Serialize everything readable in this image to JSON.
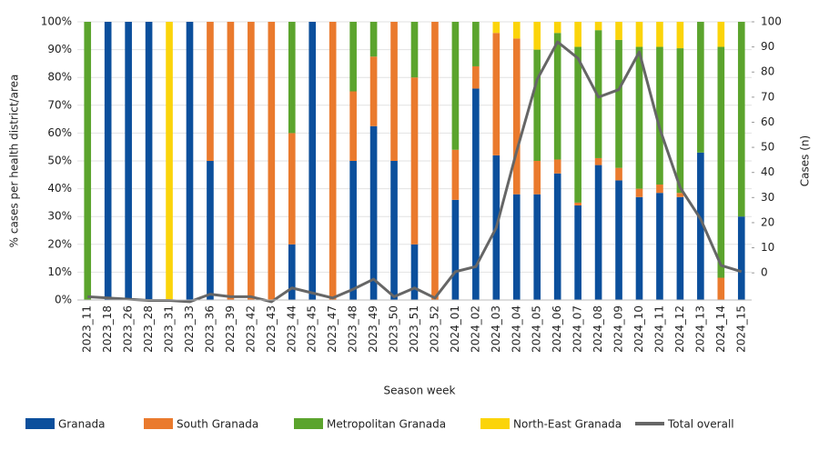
{
  "chart_data": {
    "type": "stacked-bar-line",
    "x_label": "Season week",
    "y_label": "% cases per health district/area",
    "y2_label": "Cases (n)",
    "categories": [
      "2023_11",
      "2023_18",
      "2023_26",
      "2023_28",
      "2023_31",
      "2023_33",
      "2023_36",
      "2023_39",
      "2023_42",
      "2023_43",
      "2023_44",
      "2023_45",
      "2023_47",
      "2023_48",
      "2023_49",
      "2023_50",
      "2023_51",
      "2023_52",
      "2024_01",
      "2024_02",
      "2024_03",
      "2024_04",
      "2024_05",
      "2024_06",
      "2024_07",
      "2024_08",
      "2024_09",
      "2024_10",
      "2024_11",
      "2024_12",
      "2024_13",
      "2024_14",
      "2024_15"
    ],
    "series": [
      {
        "name": "Granada",
        "color": "#0b4f9c",
        "values": [
          0,
          100,
          100,
          100,
          0,
          100,
          50,
          0,
          0,
          0,
          20,
          100,
          0,
          50,
          62.5,
          50,
          20,
          0,
          36,
          76,
          52,
          38,
          38,
          45.5,
          34,
          48.5,
          43,
          37,
          38.5,
          37,
          53,
          0,
          30
        ]
      },
      {
        "name": "South Granada",
        "color": "#ea7a2d",
        "values": [
          0,
          0,
          0,
          0,
          0,
          0,
          50,
          100,
          100,
          100,
          40,
          0,
          100,
          25,
          25,
          50,
          60,
          100,
          18,
          8,
          44,
          56,
          12,
          5,
          1,
          2.5,
          4.5,
          3,
          3,
          1.5,
          0,
          8,
          0
        ]
      },
      {
        "name": "Metropolitan Granada",
        "color": "#5ba42d",
        "values": [
          100,
          0,
          0,
          0,
          0,
          0,
          0,
          0,
          0,
          0,
          40,
          0,
          0,
          25,
          12.5,
          0,
          20,
          0,
          46,
          16,
          0,
          0,
          40,
          45.5,
          56,
          46,
          46,
          51,
          49.5,
          52,
          47,
          83,
          70
        ]
      },
      {
        "name": "North-East Granada",
        "color": "#fbd40a",
        "values": [
          0,
          0,
          0,
          0,
          100,
          0,
          0,
          0,
          0,
          0,
          0,
          0,
          0,
          0,
          0,
          0,
          0,
          0,
          0,
          0,
          4,
          6,
          10,
          4,
          9,
          3,
          6.5,
          9,
          9,
          9.5,
          0,
          9,
          0
        ]
      },
      {
        "name": "Total overall",
        "color": "#666666",
        "axis": "y2",
        "values": [
          -9.5,
          -10,
          -10.5,
          -11,
          -11,
          -11.5,
          -8.5,
          -9.5,
          -9.5,
          -11.5,
          -6,
          -8,
          -10,
          -6.5,
          -2.5,
          -9.5,
          -6,
          -10,
          0.5,
          2.5,
          18,
          48.5,
          77,
          92,
          85.5,
          70,
          73,
          88,
          57.5,
          34,
          21.5,
          3,
          0.5
        ]
      }
    ],
    "ylim": [
      0,
      100
    ],
    "yticks": [
      {
        "value": 0,
        "label": "0%"
      },
      {
        "value": 10,
        "label": "10%"
      },
      {
        "value": 20,
        "label": "20%"
      },
      {
        "value": 30,
        "label": "30%"
      },
      {
        "value": 40,
        "label": "40%"
      },
      {
        "value": 50,
        "label": "50%"
      },
      {
        "value": 60,
        "label": "60%"
      },
      {
        "value": 70,
        "label": "70%"
      },
      {
        "value": 80,
        "label": "80%"
      },
      {
        "value": 90,
        "label": "90%"
      },
      {
        "value": 100,
        "label": "100%"
      }
    ],
    "y2lim": [
      -10.8,
      100
    ],
    "y2ticks": [
      0,
      10,
      20,
      30,
      40,
      50,
      60,
      70,
      80,
      90,
      100
    ],
    "grid": true
  }
}
